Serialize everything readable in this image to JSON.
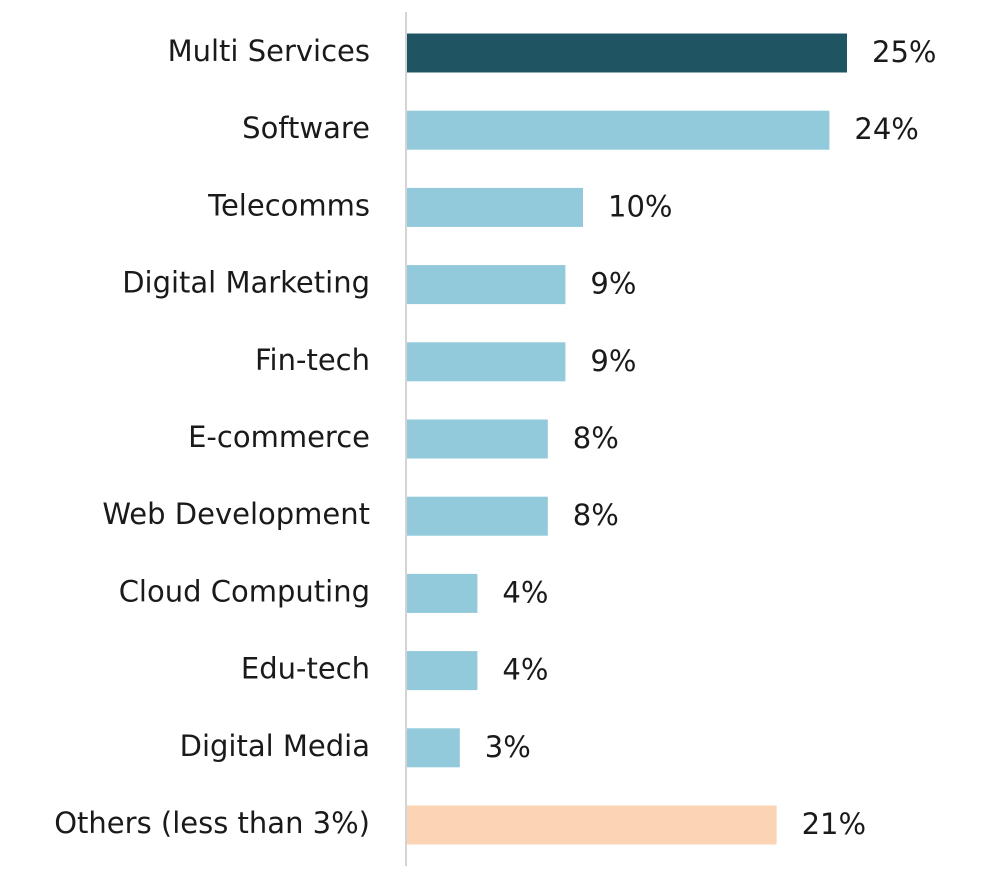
{
  "chart_data": {
    "type": "bar",
    "orientation": "horizontal",
    "title": "",
    "xlabel": "",
    "ylabel": "",
    "grid": false,
    "legend": "none",
    "value_format": "percent",
    "xlim": [
      0,
      25
    ],
    "categories": [
      "Multi Services",
      "Software",
      "Telecomms",
      "Digital Marketing",
      "Fin-tech",
      "E-commerce",
      "Web Development",
      "Cloud Computing",
      "Edu-tech",
      "Digital Media",
      "Others (less than 3%)"
    ],
    "values": [
      25,
      24,
      10,
      9,
      9,
      8,
      8,
      4,
      4,
      3,
      21
    ],
    "value_labels": [
      "25%",
      "24%",
      "10%",
      "9%",
      "9%",
      "8%",
      "8%",
      "4%",
      "4%",
      "3%",
      "21%"
    ],
    "bar_colors": [
      "#1f5462",
      "#92cadb",
      "#92cadb",
      "#92cadb",
      "#92cadb",
      "#92cadb",
      "#92cadb",
      "#92cadb",
      "#92cadb",
      "#92cadb",
      "#fbd4b4"
    ],
    "axis_color": "#d4d4d4"
  }
}
